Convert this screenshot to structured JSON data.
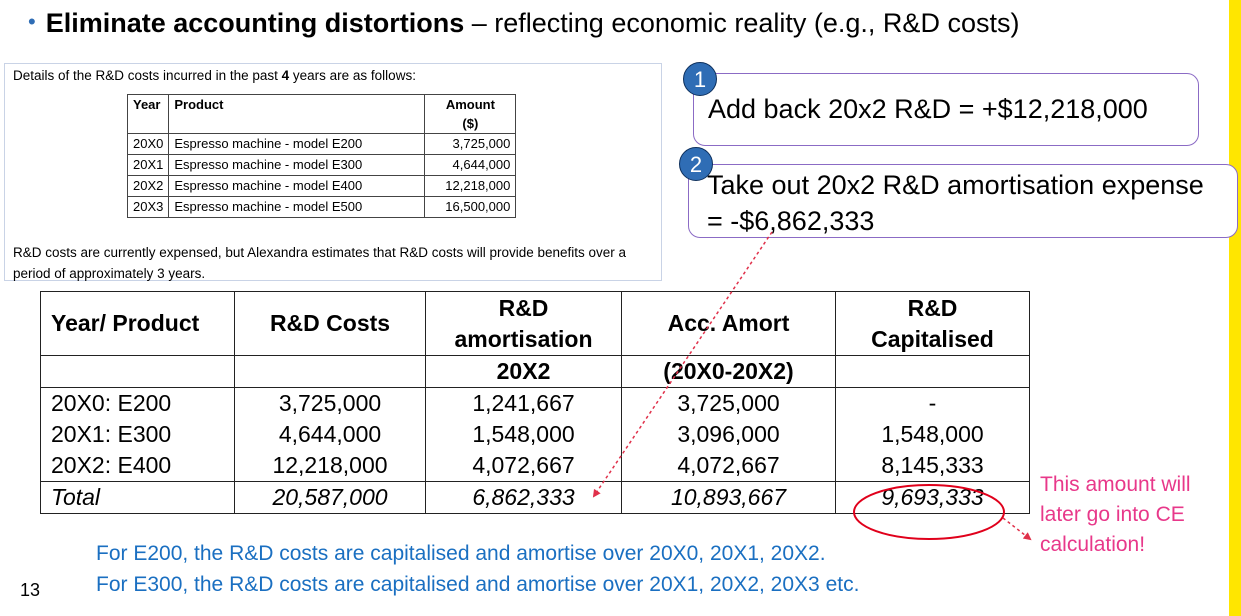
{
  "slide": {
    "bullet": "•",
    "title_bold": "Eliminate accounting distortions",
    "title_rest": " – reflecting economic reality (e.g., R&D costs)",
    "page_number": "13",
    "accent_color": "#2f6db5",
    "side_bar_color": "#ffe600"
  },
  "case": {
    "intro_prefix": "Details of the R&D costs incurred in the past ",
    "intro_years": "4",
    "intro_suffix": " years are as follows:",
    "headers": {
      "year": "Year",
      "product": "Product",
      "amount_line1": "Amount",
      "amount_line2": "($)"
    },
    "rows": [
      {
        "year": "20X0",
        "product": "Espresso machine - model E200",
        "amount": "3,725,000"
      },
      {
        "year": "20X1",
        "product": "Espresso machine - model E300",
        "amount": "4,644,000"
      },
      {
        "year": "20X2",
        "product": "Espresso machine - model E400",
        "amount": "12,218,000"
      },
      {
        "year": "20X3",
        "product": "Espresso machine - model E500",
        "amount": "16,500,000"
      }
    ],
    "note": "R&D costs are currently expensed, but Alexandra estimates that R&D costs will provide benefits over a period of approximately 3 years."
  },
  "callouts": [
    {
      "badge": "1",
      "text": "Add back 20x2 R&D = +$12,218,000"
    },
    {
      "badge": "2",
      "line1": "Take out 20x2 R&D amortisation expense",
      "line2": "= -$6,862,333"
    }
  ],
  "table": {
    "headers": {
      "c0": "Year/ Product",
      "c1": "R&D Costs",
      "c2_line1": "R&D",
      "c2_line2": "amortisation",
      "c3": "Acc. Amort",
      "c4_line1": "R&D",
      "c4_line2": "Capitalised"
    },
    "subheaders": {
      "c2": "20X2",
      "c3": "(20X0-20X2)"
    },
    "rows": [
      {
        "label": "20X0: E200",
        "costs": "3,725,000",
        "amort": "1,241,667",
        "acc": "3,725,000",
        "cap": "-"
      },
      {
        "label": "20X1: E300",
        "costs": "4,644,000",
        "amort": "1,548,000",
        "acc": "3,096,000",
        "cap": "1,548,000"
      },
      {
        "label": "20X2: E400",
        "costs": "12,218,000",
        "amort": "4,072,667",
        "acc": "4,072,667",
        "cap": "8,145,333"
      }
    ],
    "total": {
      "label": "Total",
      "costs": "20,587,000",
      "amort": "6,862,333",
      "acc": "10,893,667",
      "cap": "9,693,333"
    }
  },
  "side_note": "This amount will later go into CE calculation!",
  "footer": [
    "For E200, the R&D costs are capitalised and amortise over 20X0, 20X1, 20X2.",
    "For E300, the R&D costs are capitalised and amortise over 20X1, 20X2, 20X3 etc."
  ]
}
